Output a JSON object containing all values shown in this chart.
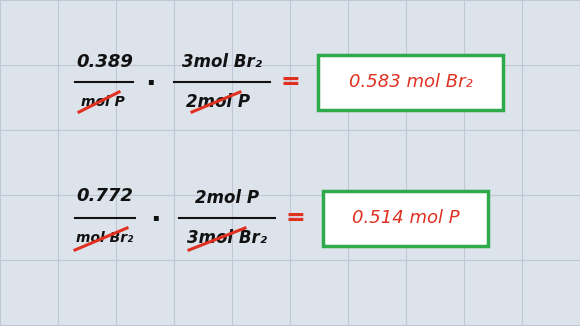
{
  "background_color": "#dde3eb",
  "grid_color": "#c0c8d8",
  "black_color": "#111111",
  "red_color": "#e03020",
  "green_color": "#2eaa4a",
  "white_color": "#ffffff",
  "row1_num": "0.389",
  "row1_denom": "mol P",
  "row1_frac_num": "3mol Br₂",
  "row1_frac_denom": "2mol P",
  "row1_result": "0.583 mol Br₂",
  "row2_num": "0.772",
  "row2_denom": "mol Br₂",
  "row2_frac_num": "2mol P",
  "row2_frac_denom": "3mol Br₂",
  "row2_result": "0.514 mol P"
}
